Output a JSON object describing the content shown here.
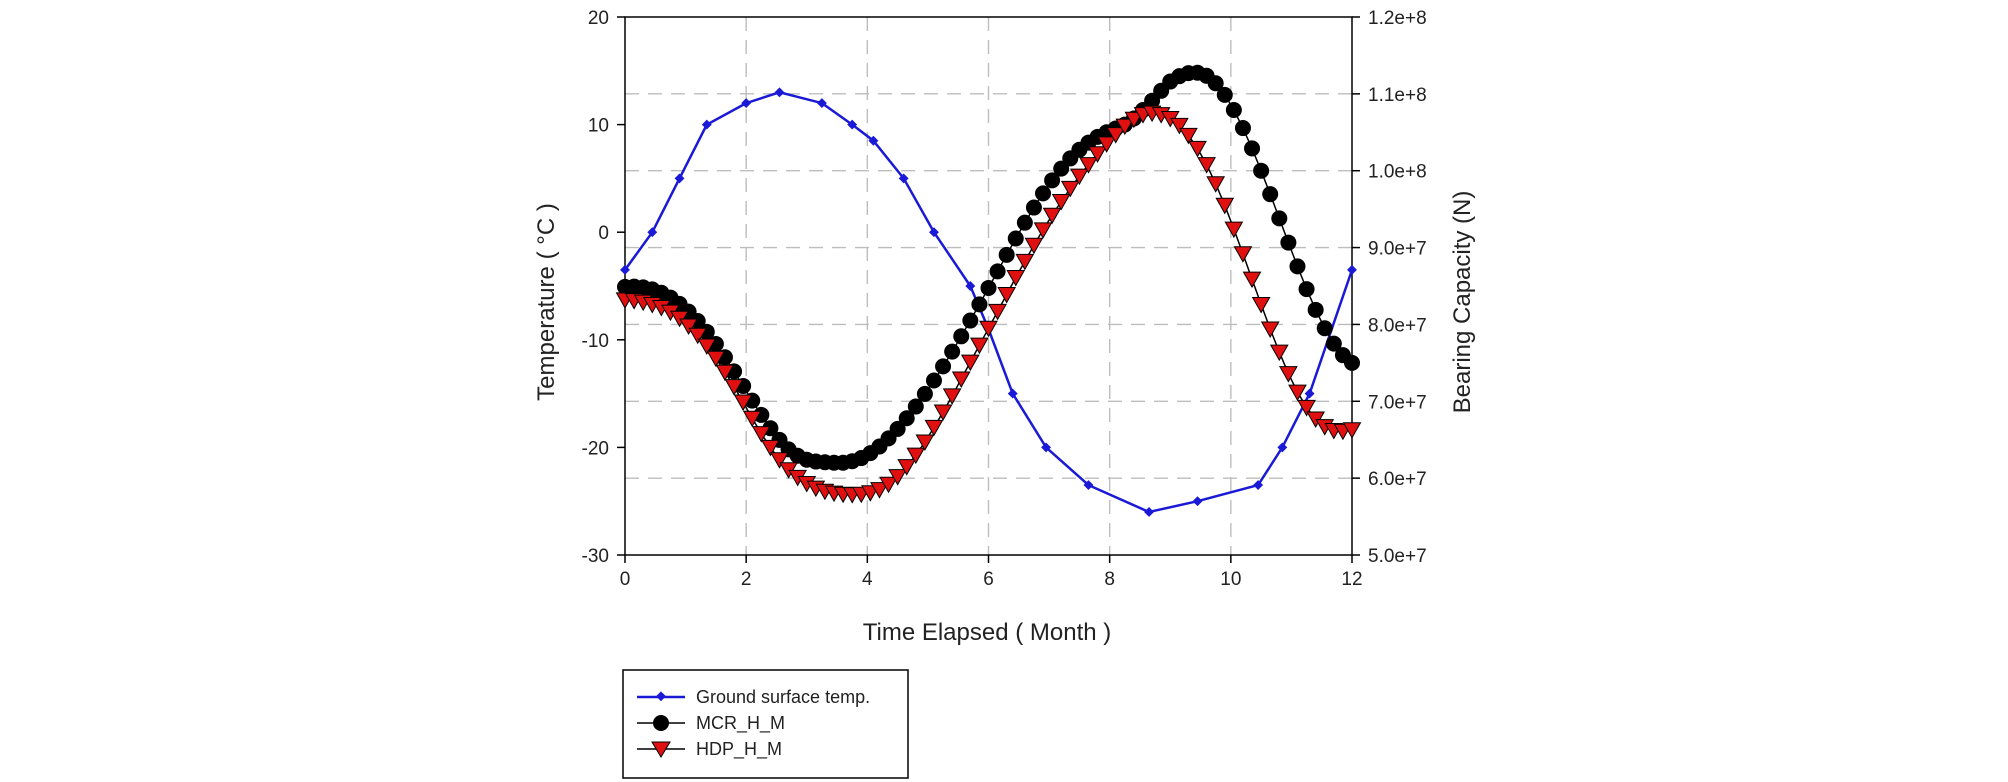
{
  "chart_data": {
    "type": "line",
    "xlabel": "Time Elapsed ( Month )",
    "ylabel": "Temperature ( °C )",
    "y2label": "Bearing Capacity (N)",
    "xlim": [
      0,
      12
    ],
    "ylim": [
      -30,
      20
    ],
    "y2lim": [
      50000000,
      120000000
    ],
    "xticks": [
      "0",
      "2",
      "4",
      "6",
      "8",
      "10",
      "12"
    ],
    "yticks": [
      "-30",
      "-20",
      "-10",
      "0",
      "10",
      "20"
    ],
    "y2ticks": [
      "5.0e+7",
      "6.0e+7",
      "7.0e+7",
      "8.0e+7",
      "9.0e+7",
      "1.0e+8",
      "1.1e+8",
      "1.2e+8"
    ],
    "grid": true,
    "legend_position": "bottom-left",
    "colors": {
      "temp": "#1a1ad6",
      "mcr": "#000000",
      "hdp": "#e01010"
    },
    "series": [
      {
        "name": "Ground surface temp.",
        "axis": "left",
        "marker": "small-diamond",
        "x": [
          0,
          0.45,
          0.9,
          1.35,
          2.0,
          2.55,
          3.25,
          3.75,
          4.1,
          4.6,
          5.1,
          5.7,
          6.0,
          6.4,
          6.95,
          7.65,
          8.65,
          9.45,
          10.45,
          10.85,
          11.3,
          12.0
        ],
        "y": [
          -3.5,
          0,
          5,
          10,
          12,
          13,
          12,
          10,
          8.5,
          5,
          0,
          -5,
          -9,
          -15,
          -20,
          -23.5,
          -26,
          -25,
          -23.5,
          -20,
          -15,
          -3.5
        ]
      },
      {
        "name": "MCR_H_M",
        "axis": "right",
        "marker": "circle",
        "x": [
          0,
          0.15,
          0.3,
          0.45,
          0.6,
          0.75,
          0.9,
          1.05,
          1.2,
          1.35,
          1.5,
          1.65,
          1.8,
          1.95,
          2.1,
          2.25,
          2.4,
          2.55,
          2.7,
          2.85,
          3.0,
          3.15,
          3.3,
          3.45,
          3.6,
          3.75,
          3.9,
          4.05,
          4.2,
          4.35,
          4.5,
          4.65,
          4.8,
          4.95,
          5.1,
          5.25,
          5.4,
          5.55,
          5.7,
          5.85,
          6.0,
          6.15,
          6.3,
          6.45,
          6.6,
          6.75,
          6.9,
          7.05,
          7.2,
          7.35,
          7.5,
          7.65,
          7.8,
          7.95,
          8.1,
          8.25,
          8.4,
          8.55,
          8.7,
          8.85,
          9.0,
          9.15,
          9.3,
          9.45,
          9.6,
          9.75,
          9.9,
          10.05,
          10.2,
          10.35,
          10.5,
          10.65,
          10.8,
          10.95,
          11.1,
          11.25,
          11.4,
          11.55,
          11.7,
          11.85,
          12.0
        ],
        "y": [
          84880000,
          84923000,
          84818000,
          84554000,
          84116000,
          83494000,
          82676000,
          81659000,
          80443000,
          79037000,
          77458000,
          75732000,
          73895000,
          71993000,
          70082000,
          68226000,
          66497000,
          64974000,
          63746000,
          62912000,
          62400000,
          62160000,
          62071000,
          62001000,
          62000000,
          62200000,
          62615000,
          63254000,
          64114000,
          65171000,
          66404000,
          67793000,
          69317000,
          70959000,
          72706000,
          74545000,
          76464000,
          78455000,
          80507000,
          82609000,
          84747000,
          86903000,
          89055000,
          91177000,
          93239000,
          95209000,
          97055000,
          98750000,
          100270000,
          101600000,
          102730000,
          103650000,
          104400000,
          105000000,
          105500000,
          106000000,
          106800000,
          107900000,
          109100000,
          110400000,
          111600000,
          112300000,
          112700000,
          112750000,
          112350000,
          111380000,
          109870000,
          107900000,
          105550000,
          102900000,
          100000000,
          96950000,
          93800000,
          90650000,
          87550000,
          84600000,
          81900000,
          79500000,
          77500000,
          76000000,
          75000000
        ]
      },
      {
        "name": "HDP_H_M",
        "axis": "right",
        "marker": "triangle-down",
        "x": [
          0,
          0.15,
          0.3,
          0.45,
          0.6,
          0.75,
          0.9,
          1.05,
          1.2,
          1.35,
          1.5,
          1.65,
          1.8,
          1.95,
          2.1,
          2.25,
          2.4,
          2.55,
          2.7,
          2.85,
          3.0,
          3.15,
          3.3,
          3.45,
          3.6,
          3.75,
          3.9,
          4.05,
          4.2,
          4.35,
          4.5,
          4.65,
          4.8,
          4.95,
          5.1,
          5.25,
          5.4,
          5.55,
          5.7,
          5.85,
          6.0,
          6.15,
          6.3,
          6.45,
          6.6,
          6.75,
          6.9,
          7.05,
          7.2,
          7.35,
          7.5,
          7.65,
          7.8,
          7.95,
          8.1,
          8.25,
          8.4,
          8.55,
          8.7,
          8.85,
          9.0,
          9.15,
          9.3,
          9.45,
          9.6,
          9.75,
          9.9,
          10.05,
          10.2,
          10.35,
          10.5,
          10.65,
          10.8,
          10.95,
          11.1,
          11.25,
          11.4,
          11.55,
          11.7,
          11.85,
          12.0
        ],
        "y": [
          83200000,
          83100000,
          82900000,
          82600000,
          82200000,
          81600000,
          80800000,
          79800000,
          78600000,
          77200000,
          75600000,
          73800000,
          71900000,
          69900000,
          67800000,
          65800000,
          64000000,
          62400000,
          61100000,
          60100000,
          59300000,
          58700000,
          58300000,
          58050000,
          57900000,
          57850000,
          57900000,
          58100000,
          58500000,
          59200000,
          60200000,
          61500000,
          63000000,
          64700000,
          66600000,
          68600000,
          70700000,
          72900000,
          75100000,
          77300000,
          79500000,
          81700000,
          83900000,
          86100000,
          88200000,
          90300000,
          92300000,
          94200000,
          96000000,
          97700000,
          99300000,
          100800000,
          102200000,
          103500000,
          104700000,
          105800000,
          106700000,
          107300000,
          107500000,
          107300000,
          106800000,
          105900000,
          104600000,
          102900000,
          100800000,
          98300000,
          95500000,
          92400000,
          89200000,
          85900000,
          82600000,
          79400000,
          76400000,
          73600000,
          71200000,
          69200000,
          67700000,
          66700000,
          66200000,
          66100000,
          66300000
        ]
      }
    ]
  }
}
